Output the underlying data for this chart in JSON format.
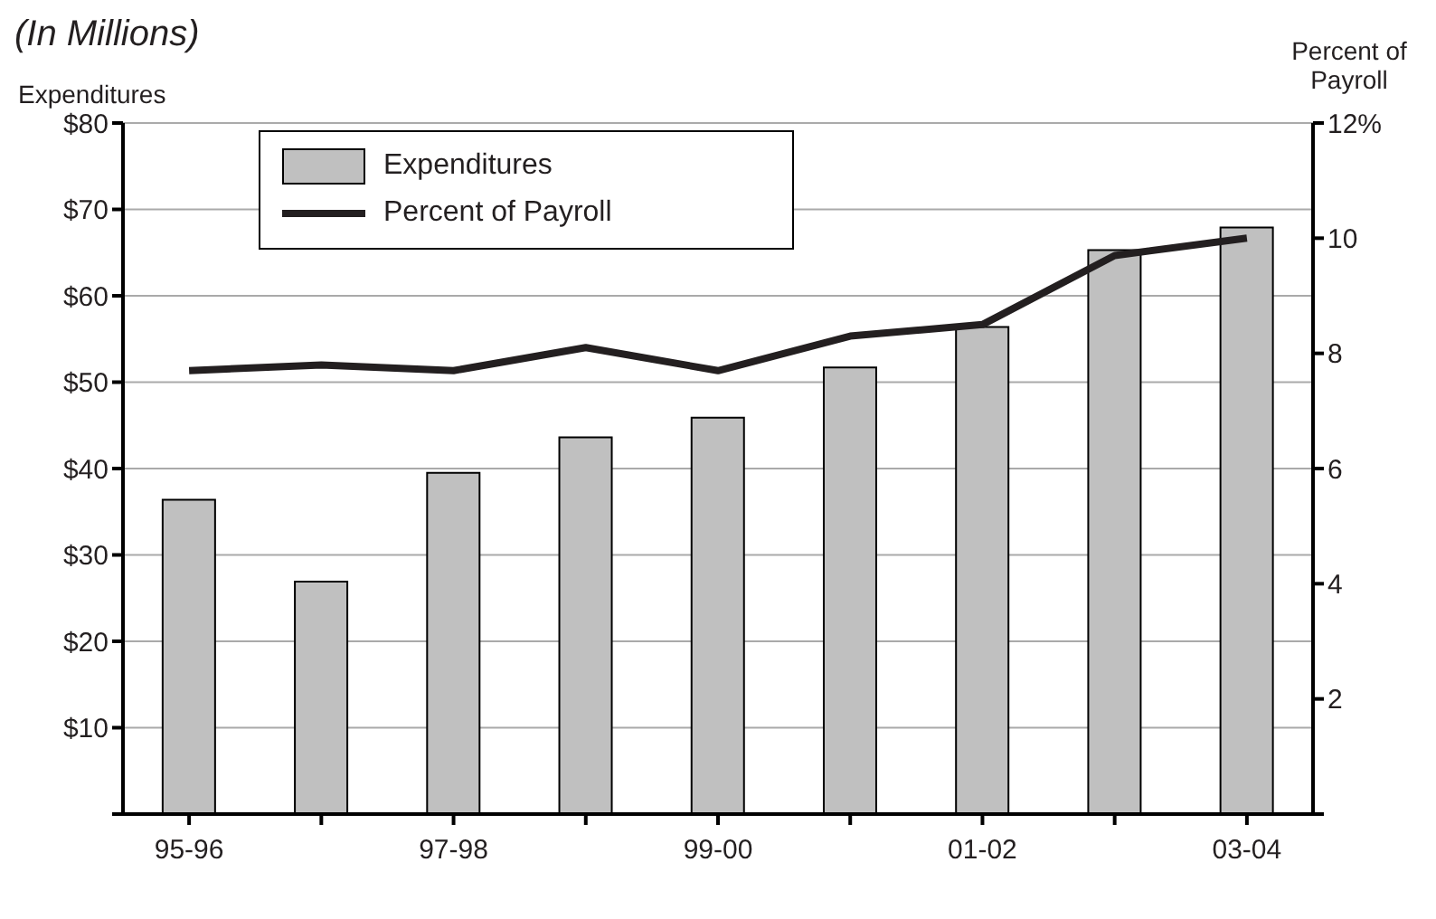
{
  "chart_data": {
    "type": "bar",
    "subtitle": "(In Millions)",
    "ylabel": "Expenditures",
    "y2label": "Percent of Payroll",
    "categories": [
      "95-96",
      null,
      "97-98",
      null,
      "99-00",
      null,
      "01-02",
      null,
      "03-04"
    ],
    "series": [
      {
        "name": "Expenditures",
        "color": "#c0c0c0",
        "values": [
          36.4,
          26.9,
          39.5,
          43.6,
          45.9,
          51.7,
          56.4,
          65.3,
          67.9
        ]
      },
      {
        "name": "Percent of Payroll",
        "type": "line",
        "axis": "y2",
        "color": "#231f20",
        "values": [
          7.7,
          7.8,
          7.7,
          8.1,
          7.7,
          8.3,
          8.5,
          9.7,
          10.0
        ]
      }
    ],
    "ylim": [
      0,
      80
    ],
    "yticks": [
      {
        "value": 0,
        "label": null
      },
      {
        "value": 10,
        "label": "$10"
      },
      {
        "value": 20,
        "label": "$20"
      },
      {
        "value": 30,
        "label": "$30"
      },
      {
        "value": 40,
        "label": "$40"
      },
      {
        "value": 50,
        "label": "$50"
      },
      {
        "value": 60,
        "label": "$60"
      },
      {
        "value": 70,
        "label": "$70"
      },
      {
        "value": 80,
        "label": "$80"
      }
    ],
    "y2lim": [
      0,
      12
    ],
    "y2ticks": [
      {
        "value": 0,
        "label": null
      },
      2,
      4,
      6,
      8,
      10,
      {
        "value": 12,
        "label": "12%"
      }
    ],
    "grid": "y",
    "legend": "top left",
    "marker": "none",
    "line_style": "solid"
  }
}
